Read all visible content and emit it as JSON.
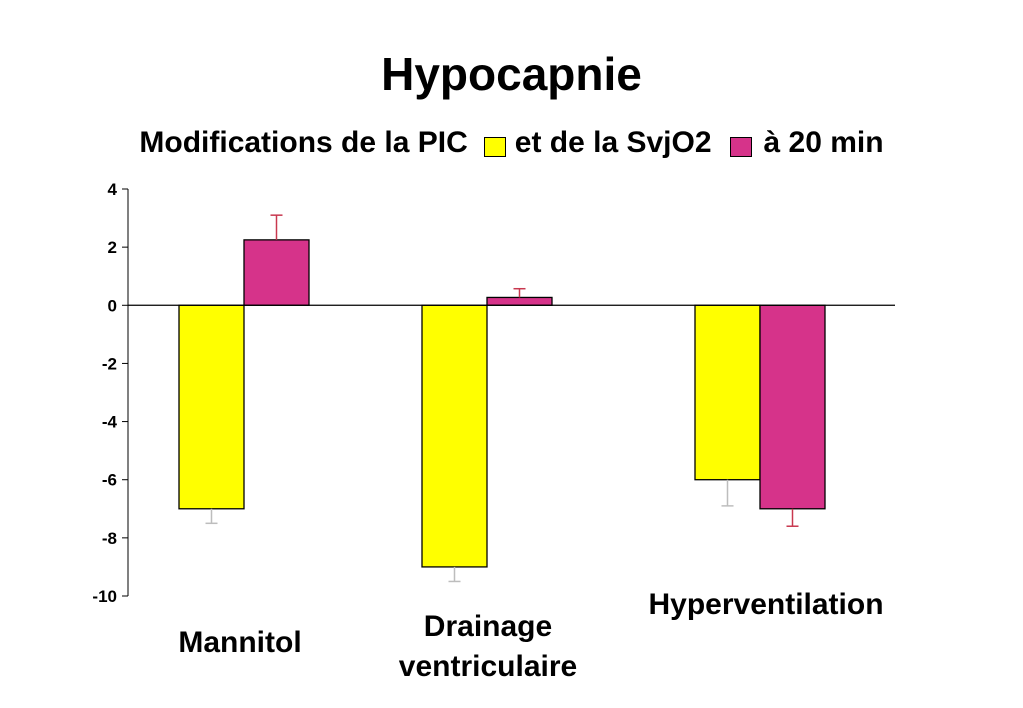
{
  "title": "Hypocapnie",
  "subtitle": {
    "part1": "Modifications de la PIC",
    "part2": "et de la SvjO2",
    "part3": "à 20 min"
  },
  "colors": {
    "pic": "#ffff00",
    "svjo2": "#d6338a",
    "pic_error": "#bdbdbd",
    "svjo2_error": "#c8384f"
  },
  "chart_data": {
    "type": "bar",
    "title": "Hypocapnie",
    "subtitle": "Modifications de la PIC et de la SvjO2 à 20 min",
    "categories": [
      "Mannitol",
      "Drainage\nventriculaire",
      "Hyperventilation"
    ],
    "series": [
      {
        "name": "PIC",
        "values": [
          -7,
          -9,
          -6
        ],
        "errors": [
          0.5,
          0.5,
          0.9
        ]
      },
      {
        "name": "SvjO2",
        "values": [
          2.25,
          0.27,
          -7
        ],
        "errors": [
          0.85,
          0.3,
          0.6
        ]
      }
    ],
    "ylim": [
      -10,
      4
    ],
    "yticks": [
      4,
      2,
      0,
      -2,
      -4,
      -6,
      -8,
      -10
    ],
    "xlabel": "",
    "ylabel": "",
    "grid": false,
    "legend": "inline-subtitle"
  }
}
